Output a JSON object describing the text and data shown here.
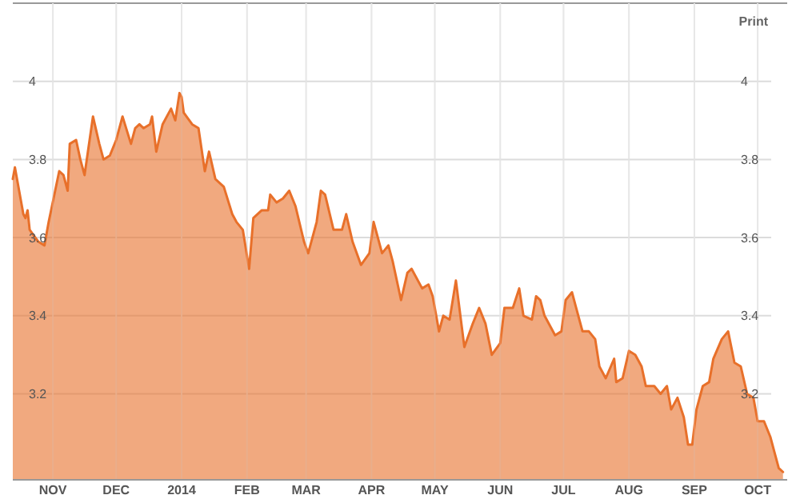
{
  "chart_data": {
    "type": "area",
    "annotations": [
      "Print"
    ],
    "grid": true,
    "xlim": [
      "2013-10-13",
      "2014-10-15"
    ],
    "xticks": [
      {
        "value": "2013-11-01",
        "label": "NOV"
      },
      {
        "value": "2013-12-01",
        "label": "DEC"
      },
      {
        "value": "2014-01-01",
        "label": "2014"
      },
      {
        "value": "2014-02-01",
        "label": "FEB"
      },
      {
        "value": "2014-03-01",
        "label": "MAR"
      },
      {
        "value": "2014-04-01",
        "label": "APR"
      },
      {
        "value": "2014-05-01",
        "label": "MAY"
      },
      {
        "value": "2014-06-01",
        "label": "JUN"
      },
      {
        "value": "2014-07-01",
        "label": "JUL"
      },
      {
        "value": "2014-08-01",
        "label": "AUG"
      },
      {
        "value": "2014-09-01",
        "label": "SEP"
      },
      {
        "value": "2014-10-01",
        "label": "OCT"
      }
    ],
    "ylim": [
      2.98,
      4.2
    ],
    "yticks": [
      3.2,
      3.4,
      3.6,
      3.8,
      4
    ],
    "y2lim": [
      2.98,
      4.2
    ],
    "y2ticks": [
      3.2,
      3.4,
      3.6,
      3.8,
      4
    ],
    "x": [
      "2013-10-13",
      "2013-10-14",
      "2013-10-16",
      "2013-10-18",
      "2013-10-19",
      "2013-10-20",
      "2013-10-21",
      "2013-10-25",
      "2013-10-28",
      "2013-10-30",
      "2013-11-04",
      "2013-11-06",
      "2013-11-08",
      "2013-11-09",
      "2013-11-12",
      "2013-11-14",
      "2013-11-16",
      "2013-11-20",
      "2013-11-23",
      "2013-11-25",
      "2013-11-28",
      "2013-12-01",
      "2013-12-04",
      "2013-12-08",
      "2013-12-10",
      "2013-12-12",
      "2013-12-14",
      "2013-12-17",
      "2013-12-18",
      "2013-12-20",
      "2013-12-23",
      "2013-12-27",
      "2013-12-29",
      "2013-12-31",
      "2014-01-01",
      "2014-01-02",
      "2014-01-06",
      "2014-01-09",
      "2014-01-12",
      "2014-01-14",
      "2014-01-17",
      "2014-01-21",
      "2014-01-25",
      "2014-01-27",
      "2014-01-30",
      "2014-02-02",
      "2014-02-04",
      "2014-02-08",
      "2014-02-11",
      "2014-02-12",
      "2014-02-15",
      "2014-02-18",
      "2014-02-21",
      "2014-02-24",
      "2014-02-28",
      "2014-03-02",
      "2014-03-06",
      "2014-03-08",
      "2014-03-10",
      "2014-03-14",
      "2014-03-18",
      "2014-03-20",
      "2014-03-23",
      "2014-03-27",
      "2014-03-31",
      "2014-04-02",
      "2014-04-06",
      "2014-04-09",
      "2014-04-11",
      "2014-04-15",
      "2014-04-18",
      "2014-04-20",
      "2014-04-25",
      "2014-04-28",
      "2014-04-30",
      "2014-05-03",
      "2014-05-05",
      "2014-05-08",
      "2014-05-11",
      "2014-05-15",
      "2014-05-19",
      "2014-05-22",
      "2014-05-25",
      "2014-05-28",
      "2014-06-01",
      "2014-06-03",
      "2014-06-07",
      "2014-06-10",
      "2014-06-12",
      "2014-06-16",
      "2014-06-18",
      "2014-06-20",
      "2014-06-22",
      "2014-06-27",
      "2014-06-30",
      "2014-07-02",
      "2014-07-05",
      "2014-07-07",
      "2014-07-10",
      "2014-07-13",
      "2014-07-16",
      "2014-07-18",
      "2014-07-21",
      "2014-07-25",
      "2014-07-26",
      "2014-07-29",
      "2014-08-01",
      "2014-08-04",
      "2014-08-07",
      "2014-08-09",
      "2014-08-13",
      "2014-08-16",
      "2014-08-19",
      "2014-08-21",
      "2014-08-24",
      "2014-08-27",
      "2014-08-29",
      "2014-08-31",
      "2014-09-02",
      "2014-09-05",
      "2014-09-08",
      "2014-09-10",
      "2014-09-14",
      "2014-09-17",
      "2014-09-20",
      "2014-09-23",
      "2014-09-26",
      "2014-09-29",
      "2014-10-01",
      "2014-10-04",
      "2014-10-07",
      "2014-10-09",
      "2014-10-11",
      "2014-10-13"
    ],
    "series": [
      {
        "color": "#e8702a",
        "values": [
          3.75,
          3.78,
          3.72,
          3.66,
          3.65,
          3.67,
          3.62,
          3.59,
          3.58,
          3.64,
          3.77,
          3.76,
          3.72,
          3.84,
          3.85,
          3.8,
          3.76,
          3.91,
          3.84,
          3.8,
          3.81,
          3.85,
          3.91,
          3.84,
          3.88,
          3.89,
          3.88,
          3.89,
          3.91,
          3.82,
          3.89,
          3.93,
          3.9,
          3.97,
          3.96,
          3.92,
          3.89,
          3.88,
          3.77,
          3.82,
          3.75,
          3.73,
          3.66,
          3.64,
          3.62,
          3.52,
          3.65,
          3.67,
          3.67,
          3.71,
          3.69,
          3.7,
          3.72,
          3.68,
          3.59,
          3.56,
          3.64,
          3.72,
          3.71,
          3.62,
          3.62,
          3.66,
          3.59,
          3.53,
          3.56,
          3.64,
          3.56,
          3.58,
          3.54,
          3.44,
          3.51,
          3.52,
          3.47,
          3.48,
          3.45,
          3.36,
          3.4,
          3.39,
          3.49,
          3.32,
          3.38,
          3.42,
          3.38,
          3.3,
          3.33,
          3.42,
          3.42,
          3.47,
          3.4,
          3.39,
          3.45,
          3.44,
          3.4,
          3.35,
          3.36,
          3.44,
          3.46,
          3.42,
          3.36,
          3.36,
          3.34,
          3.27,
          3.24,
          3.29,
          3.23,
          3.24,
          3.31,
          3.3,
          3.27,
          3.22,
          3.22,
          3.2,
          3.22,
          3.16,
          3.19,
          3.14,
          3.07,
          3.07,
          3.16,
          3.22,
          3.23,
          3.29,
          3.34,
          3.36,
          3.28,
          3.27,
          3.2,
          3.19,
          3.13,
          3.13,
          3.09,
          3.05,
          3.01,
          3.0
        ]
      }
    ]
  }
}
